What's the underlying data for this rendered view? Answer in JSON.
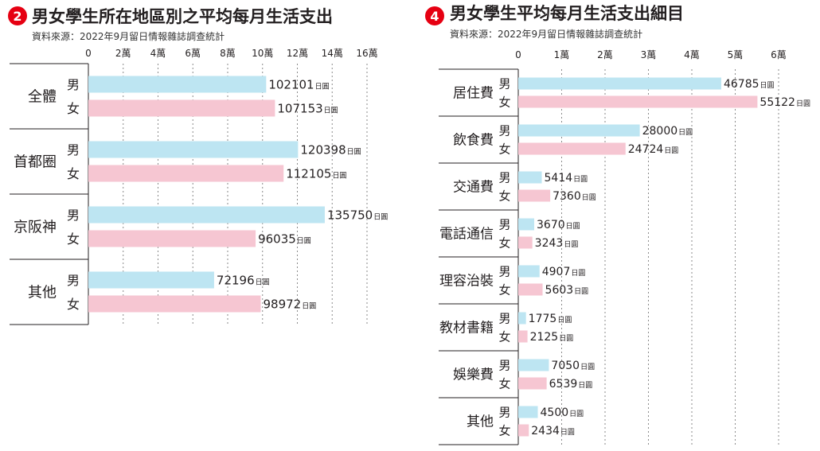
{
  "charts": {
    "left": {
      "badge": "2",
      "title": "男女學生所在地區別之平均每月生活支出",
      "source": "資料來源：2022年9月留日情報雜誌調查統計"
    },
    "right": {
      "badge": "4",
      "title": "男女學生平均每月生活支出細目",
      "source": "資料來源：2022年9月留日情報雜誌調查統計"
    }
  },
  "colors": {
    "male": "#bde5f2",
    "female": "#f6c6d2",
    "badge": "#e60012"
  },
  "chart_data": [
    {
      "type": "bar",
      "orientation": "horizontal",
      "title": "男女學生所在地區別之平均每月生活支出",
      "source": "資料來源：2022年9月留日情報雜誌調查統計",
      "categories": [
        "全體",
        "首都圈",
        "京阪神",
        "其他"
      ],
      "series": [
        {
          "name": "男",
          "values": [
            102101,
            120398,
            135750,
            72196
          ]
        },
        {
          "name": "女",
          "values": [
            107153,
            112105,
            96035,
            98972
          ]
        }
      ],
      "value_unit": "日圓",
      "xlim": [
        0,
        160000
      ],
      "tick_values": [
        0,
        20000,
        40000,
        60000,
        80000,
        100000,
        120000,
        140000,
        160000
      ],
      "tick_labels": [
        "0",
        "2萬",
        "4萬",
        "6萬",
        "8萬",
        "10萬",
        "12萬",
        "14萬",
        "16萬"
      ],
      "grid": true
    },
    {
      "type": "bar",
      "orientation": "horizontal",
      "title": "男女學生平均每月生活支出細目",
      "source": "資料來源：2022年9月留日情報雜誌調查統計",
      "categories": [
        "居住費",
        "飲食費",
        "交通費",
        "電話通信",
        "理容治裝",
        "教材書籍",
        "娛樂費",
        "其他"
      ],
      "series": [
        {
          "name": "男",
          "values": [
            46785,
            28000,
            5414,
            3670,
            4907,
            1775,
            7050,
            4500
          ]
        },
        {
          "name": "女",
          "values": [
            55122,
            24724,
            7360,
            3243,
            5603,
            2125,
            6539,
            2434
          ]
        }
      ],
      "value_unit": "日圓",
      "xlim": [
        0,
        60000
      ],
      "tick_values": [
        0,
        10000,
        20000,
        30000,
        40000,
        50000,
        60000
      ],
      "tick_labels": [
        "0",
        "1萬",
        "2萬",
        "3萬",
        "4萬",
        "5萬",
        "6萬"
      ],
      "grid": true
    }
  ]
}
